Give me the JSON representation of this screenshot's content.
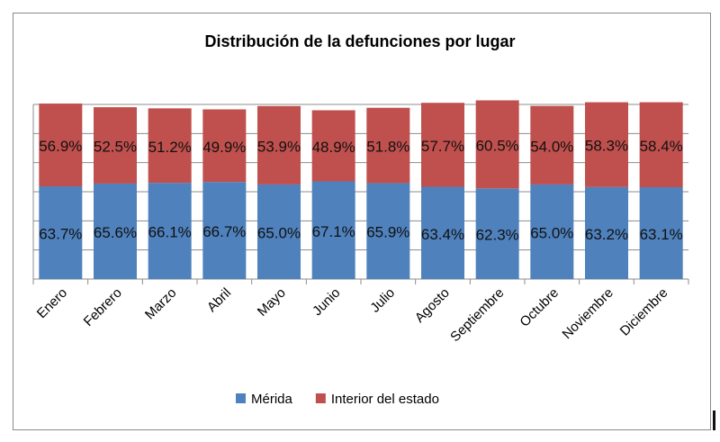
{
  "chart_data": {
    "type": "bar",
    "stacked": true,
    "title": "Distribución de la defunciones por lugar",
    "xlabel": "",
    "ylabel": "",
    "categories": [
      "Enero",
      "Febrero",
      "Marzo",
      "Abril",
      "Mayo",
      "Junio",
      "Julio",
      "Agosto",
      "Septiembre",
      "Octubre",
      "Noviembre",
      "Diciembre"
    ],
    "series": [
      {
        "name": "Mérida",
        "color": "#4f81bd",
        "values": [
          63.7,
          65.6,
          66.1,
          66.7,
          65.0,
          67.1,
          65.9,
          63.4,
          62.3,
          65.0,
          63.2,
          63.1
        ]
      },
      {
        "name": "Interior del estado",
        "color": "#c0504d",
        "values": [
          56.9,
          52.5,
          51.2,
          49.9,
          53.9,
          48.9,
          51.8,
          57.7,
          60.5,
          54.0,
          58.3,
          58.4
        ]
      }
    ],
    "ylim": [
      0,
      120
    ],
    "ytick_step": 20,
    "y_tick_labels_shown": false,
    "grid": true,
    "data_labels_format": "0.0%",
    "legend": "bottom"
  }
}
